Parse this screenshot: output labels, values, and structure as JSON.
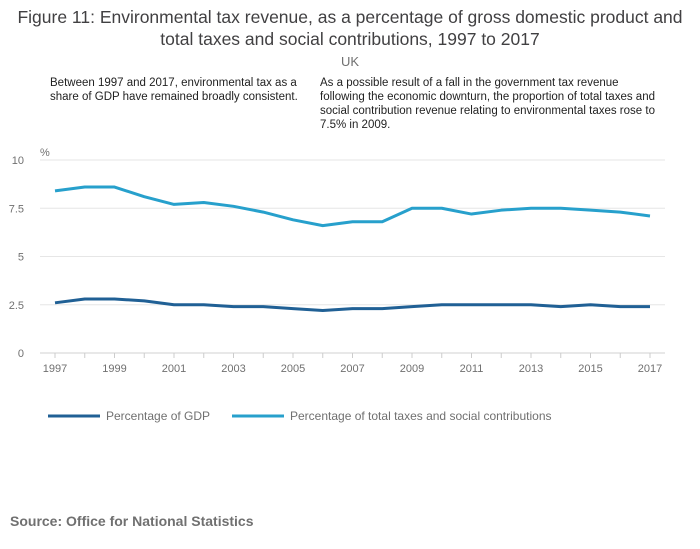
{
  "chart_data": {
    "type": "line",
    "title": "Figure 11: Environmental tax revenue, as a percentage of gross domestic product and total taxes and social contributions, 1997 to 2017",
    "subtitle": "UK",
    "ylabel": "%",
    "xlabel": "",
    "ylim": [
      0,
      10
    ],
    "yticks": [
      "0",
      "2.5",
      "5",
      "7.5",
      "10"
    ],
    "xticks": [
      "1997",
      "1999",
      "2001",
      "2003",
      "2005",
      "2007",
      "2009",
      "2011",
      "2013",
      "2015",
      "2017"
    ],
    "grid": true,
    "legend_position": "bottom",
    "x": [
      1997,
      1998,
      1999,
      2000,
      2001,
      2002,
      2003,
      2004,
      2005,
      2006,
      2007,
      2008,
      2009,
      2010,
      2011,
      2012,
      2013,
      2014,
      2015,
      2016,
      2017
    ],
    "series": [
      {
        "name": "Percentage of GDP",
        "color": "#206095",
        "values": [
          2.6,
          2.8,
          2.8,
          2.7,
          2.5,
          2.5,
          2.4,
          2.4,
          2.3,
          2.2,
          2.3,
          2.3,
          2.4,
          2.5,
          2.5,
          2.5,
          2.5,
          2.4,
          2.5,
          2.4,
          2.4
        ]
      },
      {
        "name": "Percentage of total taxes and social contributions",
        "color": "#27a0cc",
        "values": [
          8.4,
          8.6,
          8.6,
          8.1,
          7.7,
          7.8,
          7.6,
          7.3,
          6.9,
          6.6,
          6.8,
          6.8,
          7.5,
          7.5,
          7.2,
          7.4,
          7.5,
          7.5,
          7.4,
          7.3,
          7.1
        ]
      }
    ],
    "annotations": [
      "Between 1997 and 2017, environmental tax as a share of GDP have remained broadly consistent.",
      "As a possible result of a fall in the government tax revenue following the economic downturn, the proportion of total taxes and social contribution revenue relating to environmental taxes rose to 7.5% in 2009."
    ]
  },
  "source": "Source: Office for National Statistics"
}
